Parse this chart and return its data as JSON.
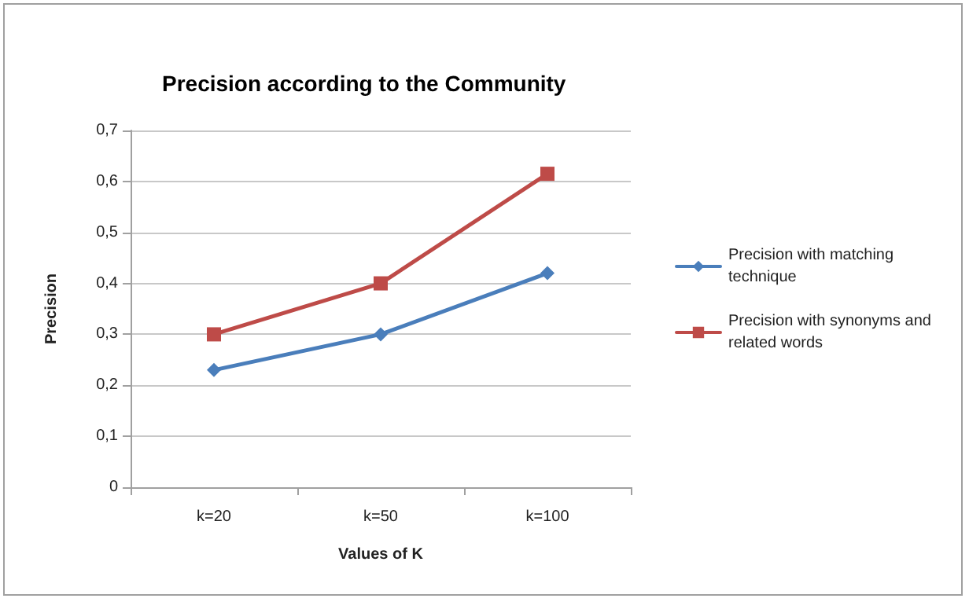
{
  "chart_data": {
    "type": "line",
    "title": "Precision according to the Community",
    "xlabel": "Values of K",
    "ylabel": "Precision",
    "categories": [
      "k=20",
      "k=50",
      "k=100"
    ],
    "series": [
      {
        "name": "Precision with matching technique",
        "color": "#4a7ebb",
        "marker": "diamond",
        "values": [
          0.23,
          0.3,
          0.42
        ]
      },
      {
        "name": "Precision with synonyms and related words",
        "color": "#be4b48",
        "marker": "square",
        "values": [
          0.3,
          0.4,
          0.615
        ]
      }
    ],
    "ylim": [
      0,
      0.7
    ],
    "yticks": [
      {
        "value": 0,
        "label": "0"
      },
      {
        "value": 0.1,
        "label": "0,1"
      },
      {
        "value": 0.2,
        "label": "0,2"
      },
      {
        "value": 0.3,
        "label": "0,3"
      },
      {
        "value": 0.4,
        "label": "0,4"
      },
      {
        "value": 0.5,
        "label": "0,5"
      },
      {
        "value": 0.6,
        "label": "0,6"
      },
      {
        "value": 0.7,
        "label": "0,7"
      }
    ],
    "grid": "y",
    "legend": "right",
    "line_style": "solid"
  }
}
